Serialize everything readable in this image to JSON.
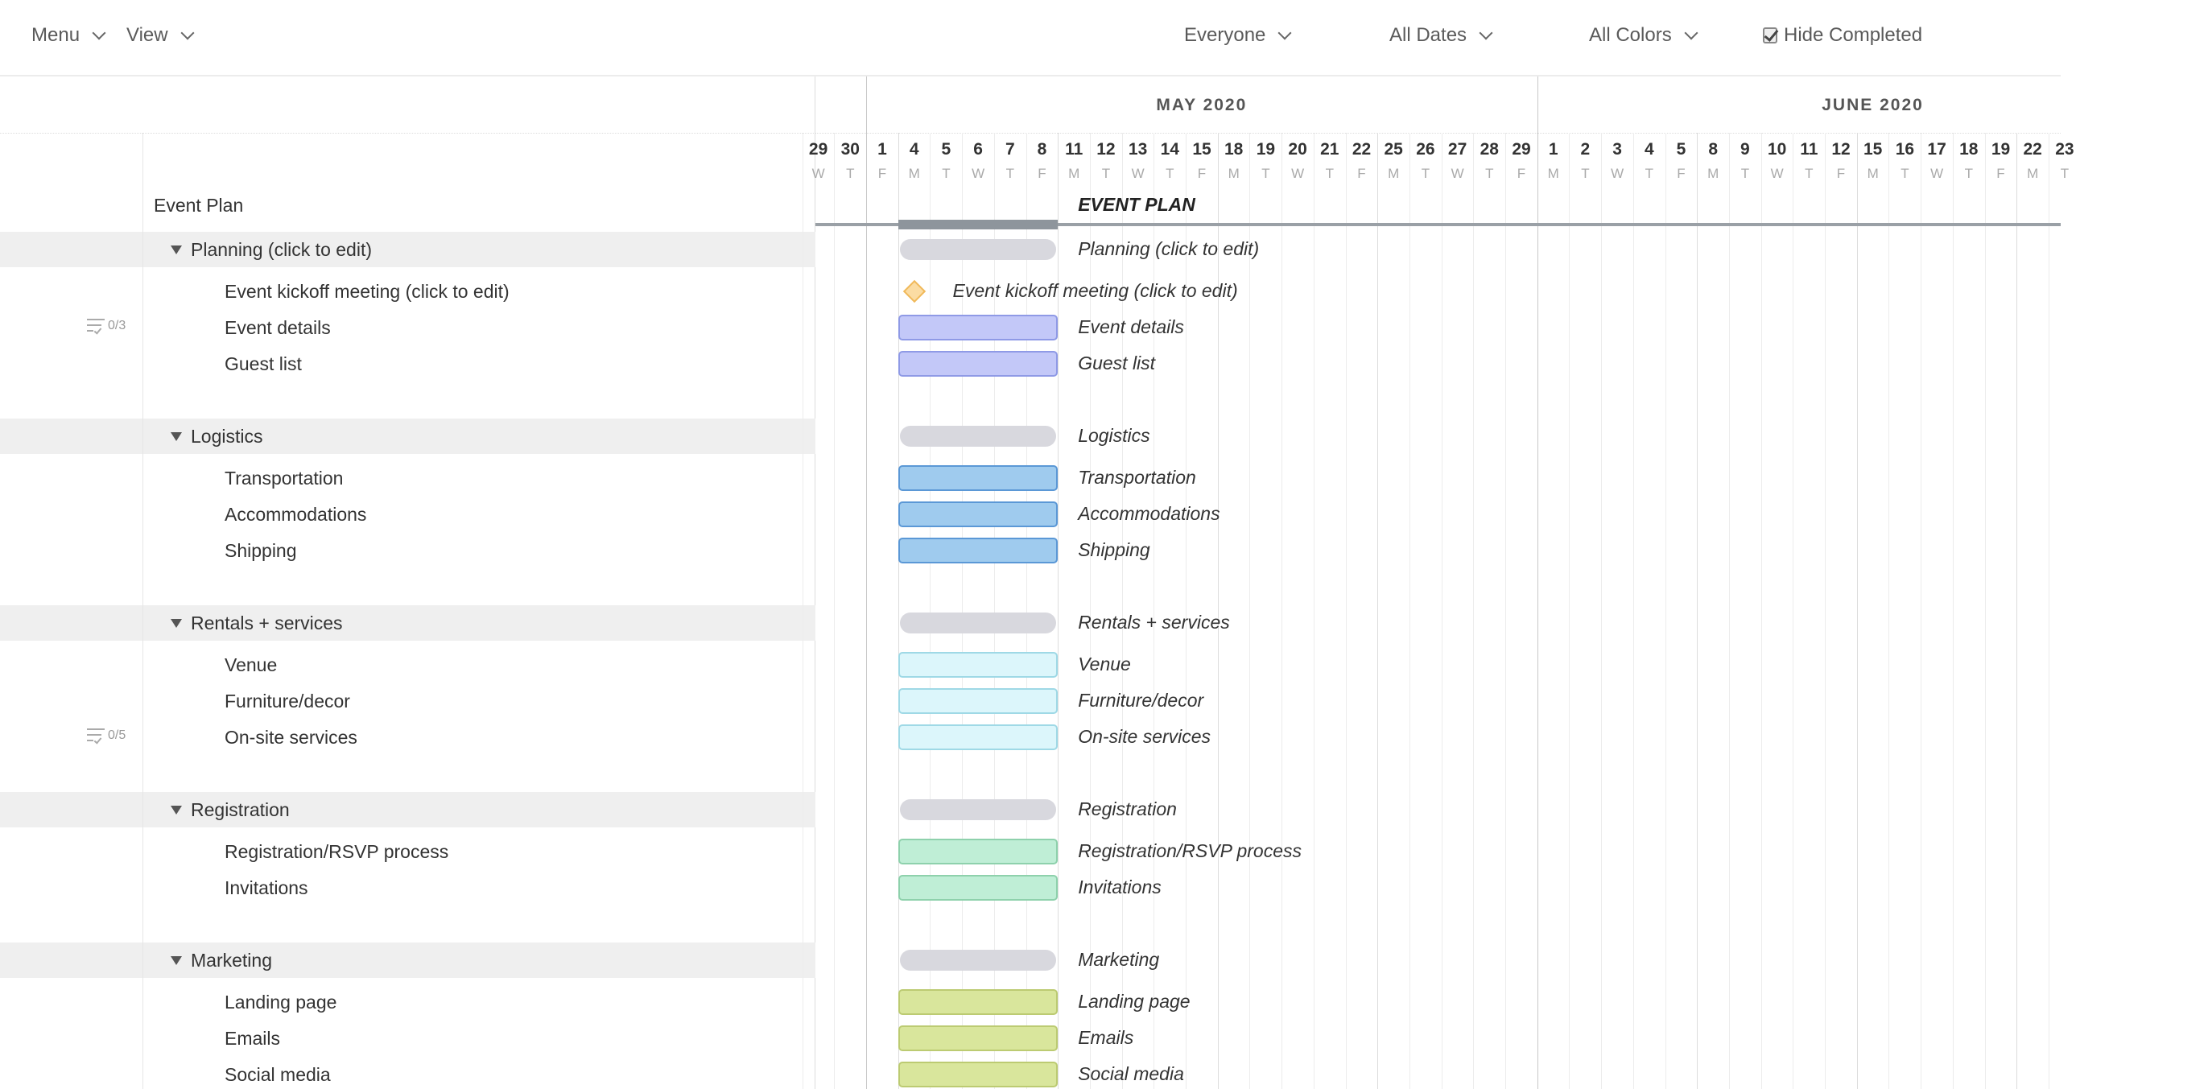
{
  "toolbar": {
    "menu": "Menu",
    "view": "View",
    "everyone": "Everyone",
    "all_dates": "All Dates",
    "all_colors": "All Colors",
    "hide_completed": "Hide Completed",
    "hide_completed_checked": true
  },
  "timeline": {
    "months": [
      {
        "label": "MAY 2020",
        "month": 5
      },
      {
        "label": "JUNE 2020",
        "month": 6
      }
    ],
    "days": [
      {
        "d": "29",
        "w": "W",
        "m": 4
      },
      {
        "d": "30",
        "w": "T",
        "m": 4
      },
      {
        "d": "1",
        "w": "F",
        "m": 5
      },
      {
        "d": "4",
        "w": "M",
        "m": 5
      },
      {
        "d": "5",
        "w": "T",
        "m": 5
      },
      {
        "d": "6",
        "w": "W",
        "m": 5
      },
      {
        "d": "7",
        "w": "T",
        "m": 5
      },
      {
        "d": "8",
        "w": "F",
        "m": 5
      },
      {
        "d": "11",
        "w": "M",
        "m": 5
      },
      {
        "d": "12",
        "w": "T",
        "m": 5
      },
      {
        "d": "13",
        "w": "W",
        "m": 5
      },
      {
        "d": "14",
        "w": "T",
        "m": 5
      },
      {
        "d": "15",
        "w": "F",
        "m": 5
      },
      {
        "d": "18",
        "w": "M",
        "m": 5
      },
      {
        "d": "19",
        "w": "T",
        "m": 5
      },
      {
        "d": "20",
        "w": "W",
        "m": 5
      },
      {
        "d": "21",
        "w": "T",
        "m": 5
      },
      {
        "d": "22",
        "w": "F",
        "m": 5
      },
      {
        "d": "25",
        "w": "M",
        "m": 5
      },
      {
        "d": "26",
        "w": "T",
        "m": 5
      },
      {
        "d": "27",
        "w": "W",
        "m": 5
      },
      {
        "d": "28",
        "w": "T",
        "m": 5
      },
      {
        "d": "29",
        "w": "F",
        "m": 5
      },
      {
        "d": "1",
        "w": "M",
        "m": 6
      },
      {
        "d": "2",
        "w": "T",
        "m": 6
      },
      {
        "d": "3",
        "w": "W",
        "m": 6
      },
      {
        "d": "4",
        "w": "T",
        "m": 6
      },
      {
        "d": "5",
        "w": "F",
        "m": 6
      },
      {
        "d": "8",
        "w": "M",
        "m": 6
      },
      {
        "d": "9",
        "w": "T",
        "m": 6
      },
      {
        "d": "10",
        "w": "W",
        "m": 6
      },
      {
        "d": "11",
        "w": "T",
        "m": 6
      },
      {
        "d": "12",
        "w": "F",
        "m": 6
      },
      {
        "d": "15",
        "w": "M",
        "m": 6
      },
      {
        "d": "16",
        "w": "T",
        "m": 6
      },
      {
        "d": "17",
        "w": "W",
        "m": 6
      },
      {
        "d": "18",
        "w": "T",
        "m": 6
      },
      {
        "d": "19",
        "w": "F",
        "m": 6
      },
      {
        "d": "22",
        "w": "M",
        "m": 6
      },
      {
        "d": "23",
        "w": "T",
        "m": 6
      }
    ]
  },
  "project": {
    "name": "Event Plan",
    "chart_label": "EVENT PLAN",
    "start": "5-4",
    "end": "5-8",
    "color": "#8e959c"
  },
  "groups": [
    {
      "name": "Planning (click to edit)",
      "tasks": [
        {
          "name": "Event kickoff meeting (click to edit)",
          "milestone": true,
          "start": "5-4",
          "end": "5-4"
        },
        {
          "name": "Event details",
          "start": "5-4",
          "end": "5-8",
          "checklist": "0/3"
        },
        {
          "name": "Guest list",
          "start": "5-4",
          "end": "5-8"
        }
      ],
      "start": "5-4",
      "end": "5-8",
      "fill": "#c3c8f8",
      "border": "#8f9ae6"
    },
    {
      "name": "Logistics",
      "tasks": [
        {
          "name": "Transportation",
          "start": "5-4",
          "end": "5-8"
        },
        {
          "name": "Accommodations",
          "start": "5-4",
          "end": "5-8"
        },
        {
          "name": "Shipping",
          "start": "5-4",
          "end": "5-8"
        }
      ],
      "start": "5-4",
      "end": "5-8",
      "fill": "#9fcbee",
      "border": "#5b98d6"
    },
    {
      "name": "Rentals + services",
      "tasks": [
        {
          "name": "Venue",
          "start": "5-4",
          "end": "5-8"
        },
        {
          "name": "Furniture/decor",
          "start": "5-4",
          "end": "5-8"
        },
        {
          "name": "On-site services",
          "start": "5-4",
          "end": "5-8",
          "checklist": "0/5"
        }
      ],
      "start": "5-4",
      "end": "5-8",
      "fill": "#dcf6fb",
      "border": "#9fd9e6"
    },
    {
      "name": "Registration",
      "tasks": [
        {
          "name": "Registration/RSVP process",
          "start": "5-4",
          "end": "5-8"
        },
        {
          "name": "Invitations",
          "start": "5-4",
          "end": "5-8"
        }
      ],
      "start": "5-4",
      "end": "5-8",
      "fill": "#bfeed6",
      "border": "#8ed1ac"
    },
    {
      "name": "Marketing",
      "tasks": [
        {
          "name": "Landing page",
          "start": "5-4",
          "end": "5-8"
        },
        {
          "name": "Emails",
          "start": "5-4",
          "end": "5-8"
        },
        {
          "name": "Social media",
          "start": "5-4",
          "end": "5-8"
        }
      ],
      "start": "5-4",
      "end": "5-8",
      "fill": "#d9e69c",
      "border": "#bccb72"
    }
  ]
}
